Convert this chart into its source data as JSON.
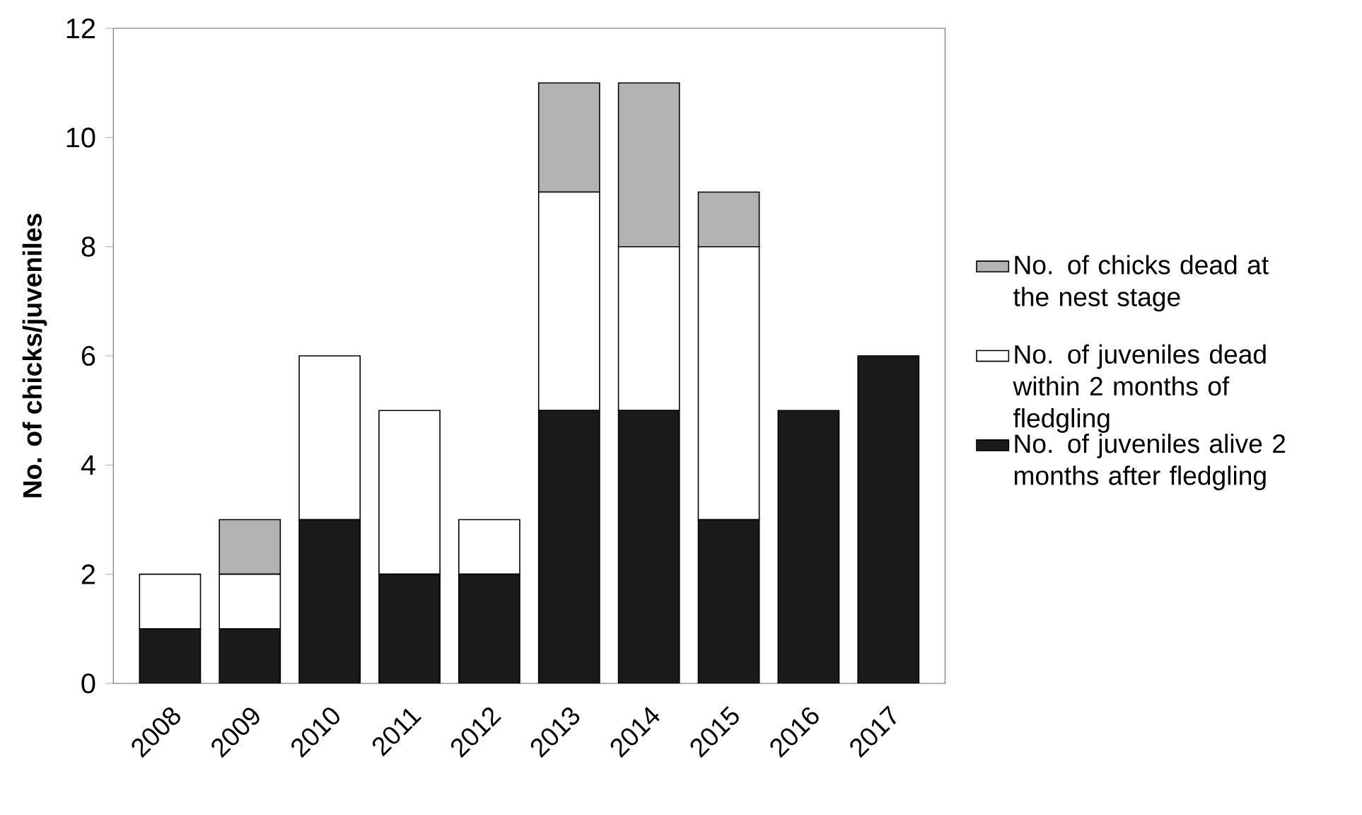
{
  "chart_data": {
    "type": "bar",
    "stacked": true,
    "ylabel": "No. of chicks/juveniles",
    "categories": [
      "2008",
      "2009",
      "2010",
      "2011",
      "2012",
      "2013",
      "2014",
      "2015",
      "2016",
      "2017"
    ],
    "series": [
      {
        "name": "No. of juveniles alive 2 months after fledgling",
        "color": "#1a1a1a",
        "values": [
          1,
          1,
          3,
          2,
          2,
          5,
          5,
          3,
          5,
          6
        ]
      },
      {
        "name": "No. of juveniles dead within 2 months of fledgling",
        "color": "#ffffff",
        "values": [
          1,
          1,
          3,
          3,
          1,
          4,
          3,
          5,
          0,
          0
        ]
      },
      {
        "name": "No. of chicks dead at the nest stage",
        "color": "#b3b3b3",
        "values": [
          0,
          1,
          0,
          0,
          0,
          2,
          3,
          1,
          0,
          0
        ]
      }
    ],
    "ylim": [
      0,
      12
    ],
    "yticks": [
      0,
      2,
      4,
      6,
      8,
      10,
      12
    ],
    "grid": false,
    "legend": "right"
  }
}
